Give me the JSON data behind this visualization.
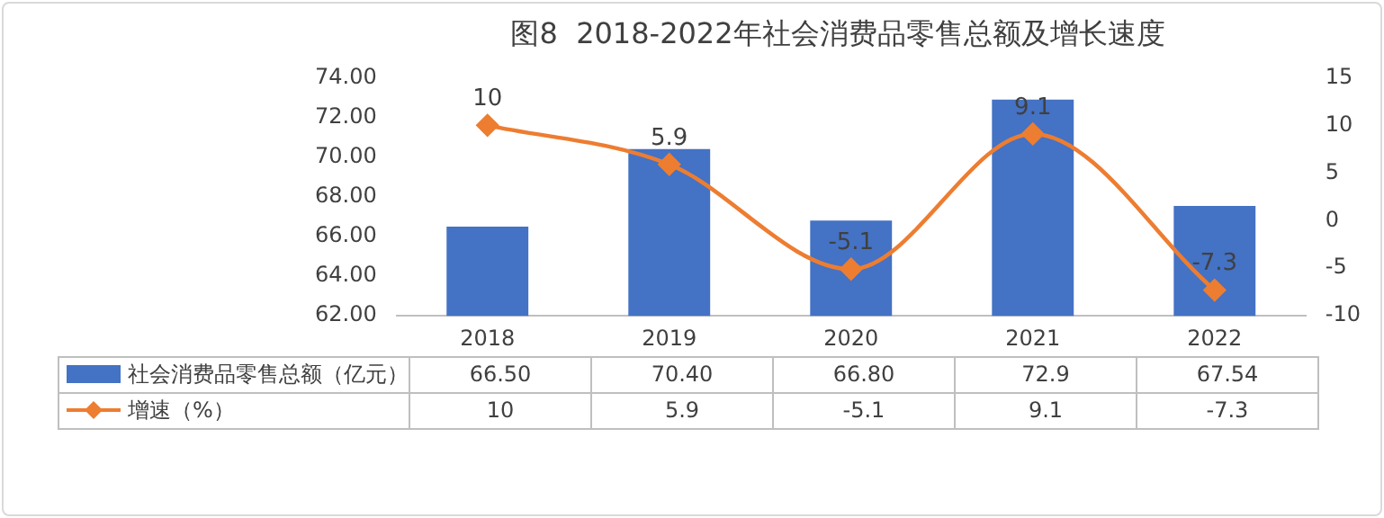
{
  "chart_data": {
    "type": "bar",
    "title": "图8  2018-2022年社会消费品零售总额及增长速度",
    "categories": [
      "2018",
      "2019",
      "2020",
      "2021",
      "2022"
    ],
    "series": [
      {
        "name": "社会消费品零售总额（亿元）",
        "color": "#4472c4",
        "values": [
          66.5,
          70.4,
          66.8,
          72.9,
          67.54
        ],
        "value_labels": [
          "66.50",
          "70.40",
          "66.80",
          "72.9",
          "67.54"
        ]
      },
      {
        "name": "增速（%）",
        "type": "line",
        "axis": "y2",
        "color": "#ed7d31",
        "marker": "diamond",
        "values": [
          10,
          5.9,
          -5.1,
          9.1,
          -7.3
        ],
        "value_labels": [
          "10",
          "5.9",
          "-5.1",
          "9.1",
          "-7.3"
        ]
      }
    ],
    "ylim": [
      62,
      74
    ],
    "yticks": [
      {
        "value": 62,
        "label": "62.00"
      },
      {
        "value": 64,
        "label": "64.00"
      },
      {
        "value": 66,
        "label": "66.00"
      },
      {
        "value": 68,
        "label": "68.00"
      },
      {
        "value": 70,
        "label": "70.00"
      },
      {
        "value": 72,
        "label": "72.00"
      },
      {
        "value": 74,
        "label": "74.00"
      }
    ],
    "y2lim": [
      -10,
      15
    ],
    "y2ticks": [
      -10,
      -5,
      0,
      5,
      10,
      15
    ],
    "data_labels": true,
    "legend": "bottom left"
  }
}
